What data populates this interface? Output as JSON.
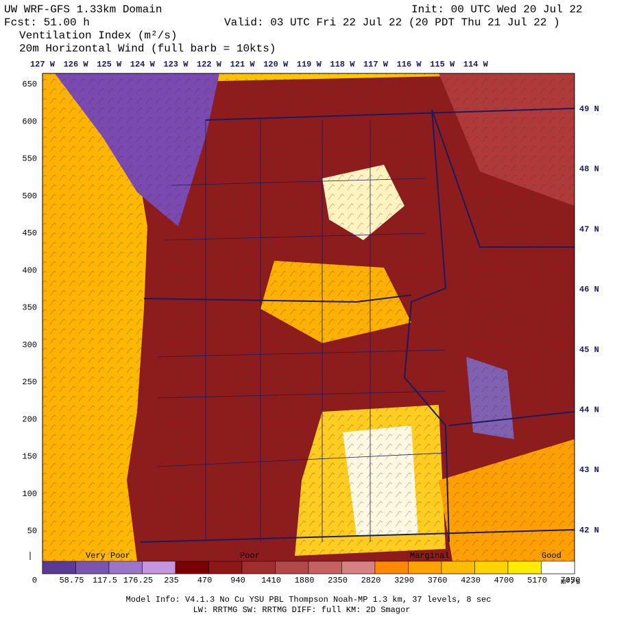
{
  "header": {
    "title": "UW WRF-GFS 1.33km Domain",
    "init": "Init: 00 UTC Wed 20 Jul 22",
    "forecast": "Fcst:   51.00 h",
    "valid": "Valid: 03 UTC Fri 22 Jul 22   (20 PDT Thu 21 Jul 22  )",
    "field": "Ventilation Index (m²/s)",
    "wind": "20m Horizontal Wind  (full barb = 10kts)"
  },
  "longitudes": [
    "127 W",
    "126 W",
    "125 W",
    "124 W",
    "123 W",
    "122 W",
    "121 W",
    "120 W",
    "119 W",
    "118 W",
    "117 W",
    "116 W",
    "115 W",
    "114 W"
  ],
  "latitudes": [
    "49 N",
    "48 N",
    "47 N",
    "46 N",
    "45 N",
    "44 N",
    "43 N",
    "42 N"
  ],
  "y_axis": [
    "650",
    "600",
    "550",
    "500",
    "450",
    "400",
    "350",
    "300",
    "250",
    "200",
    "150",
    "100",
    "50",
    "0"
  ],
  "colorbar": {
    "labels": [
      "58.75",
      "117.5",
      "176.25",
      "235",
      "470",
      "940",
      "1410",
      "1880",
      "2350",
      "2820",
      "3290",
      "3760",
      "4230",
      "4700",
      "5170",
      "7050"
    ],
    "colors": [
      "#5a3a94",
      "#7a55b0",
      "#9c74c9",
      "#c596e0",
      "#7a0000",
      "#8e1616",
      "#a02e2e",
      "#b24848",
      "#c46262",
      "#d68282",
      "#ff8800",
      "#ffa200",
      "#ffbc00",
      "#ffd400",
      "#ffec00",
      "#ffffff"
    ],
    "categories": [
      "Very Poor",
      "Poor",
      "Marginal",
      "Good"
    ],
    "unit": "m²/s"
  },
  "footer": {
    "line1": "Model Info: V4.1.3    No Cu    YSU PBL  Thompson     Noah-MP   1.3 km,  37 levels,    8 sec",
    "line2": "LW: RRTMG SW: RRTMG    DIFF: full    KM: 2D Smagor"
  }
}
